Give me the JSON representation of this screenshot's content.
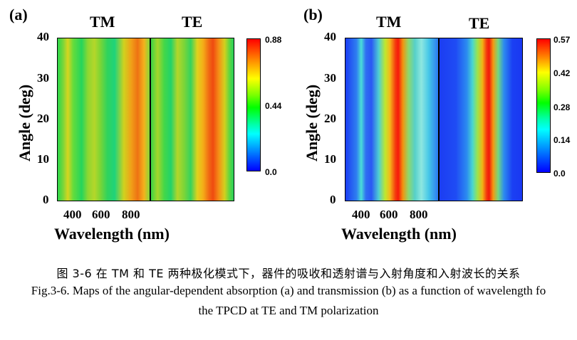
{
  "figure": {
    "panel_a": {
      "letter": "(a)",
      "left_label": "TM",
      "right_label": "TE",
      "ylabel": "Angle (deg)",
      "xlabel": "Wavelength (nm)",
      "y_ticks": [
        "0",
        "10",
        "20",
        "30",
        "40"
      ],
      "x_ticks": [
        "400",
        "600",
        "800"
      ],
      "colorbar_ticks": [
        "0.88",
        "0.44",
        "0.0"
      ]
    },
    "panel_b": {
      "letter": "(b)",
      "left_label": "TM",
      "right_label": "TE",
      "ylabel": "Angle (deg)",
      "xlabel": "Wavelength (nm)",
      "y_ticks": [
        "0",
        "10",
        "20",
        "30",
        "40"
      ],
      "x_ticks": [
        "400",
        "600",
        "800"
      ],
      "colorbar_ticks": [
        "0.57",
        "0.42",
        "0.28",
        "0.14",
        "0.0"
      ]
    }
  },
  "chart_data": [
    {
      "type": "heatmap",
      "panel": "(a)",
      "maps": [
        "TM",
        "TE"
      ],
      "ylabel": "Angle (deg)",
      "xlabel": "Wavelength (nm)",
      "ylim": [
        0,
        40
      ],
      "x_ticks": [
        400,
        600,
        800
      ],
      "colorbar": {
        "min": 0.0,
        "mid": 0.44,
        "max": 0.88
      },
      "colorscale": [
        "#0000ff",
        "#00ffff",
        "#00ff00",
        "#ffff00",
        "#ff0000"
      ]
    },
    {
      "type": "heatmap",
      "panel": "(b)",
      "maps": [
        "TM",
        "TE"
      ],
      "ylabel": "Angle (deg)",
      "xlabel": "Wavelength (nm)",
      "ylim": [
        0,
        40
      ],
      "x_ticks": [
        400,
        600,
        800
      ],
      "colorbar": {
        "ticks": [
          0.0,
          0.14,
          0.28,
          0.42,
          0.57
        ]
      },
      "colorscale": [
        "#0000ff",
        "#00ffff",
        "#00ff00",
        "#ffff00",
        "#ff0000"
      ]
    }
  ],
  "caption": {
    "cn": "图 3-6 在 TM 和 TE 两种极化模式下，器件的吸收和透射谱与入射角度和入射波长的关系",
    "en_line1": "Fig.3-6. Maps of the angular-dependent absorption (a) and transmission (b) as a function of wavelength fo",
    "en_line2": "the TPCD at TE and TM polarization"
  }
}
